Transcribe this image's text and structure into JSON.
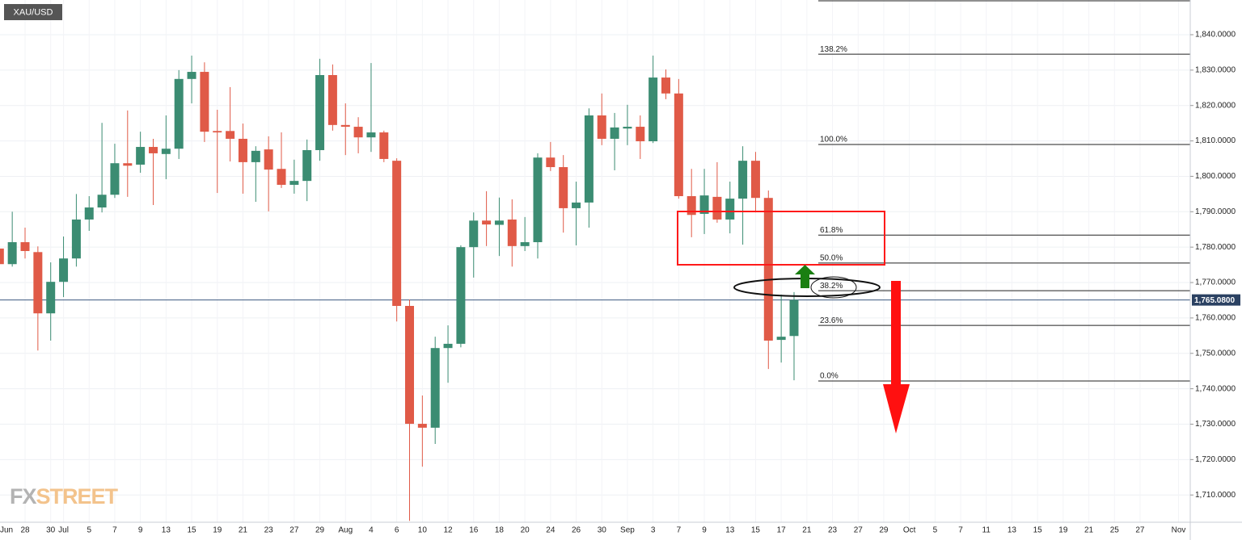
{
  "chart_data": {
    "type": "candlestick",
    "symbol": "XAU/USD",
    "categories": [
      "Jun",
      null,
      "28",
      null,
      "30",
      "Jul",
      null,
      "5",
      null,
      "7",
      null,
      "9",
      null,
      "13",
      null,
      "15",
      null,
      "19",
      null,
      "21",
      null,
      "23",
      null,
      "27",
      null,
      "29",
      null,
      "Aug",
      null,
      "4",
      null,
      "6",
      null,
      "10",
      null,
      "12",
      null,
      "16",
      null,
      "18",
      null,
      "20",
      null,
      "24",
      null,
      "26",
      null,
      "30",
      null,
      "Sep",
      null,
      "3",
      null,
      "7",
      null,
      "9",
      null,
      "13",
      null,
      "15",
      null,
      "17",
      null,
      "21",
      null,
      "23",
      null,
      "27",
      null,
      "29",
      null,
      "Oct",
      null,
      "5",
      null,
      "7",
      null,
      "11",
      null,
      "13",
      null,
      "15",
      null,
      "19",
      null,
      "21",
      null,
      "25",
      null,
      "27",
      null,
      null,
      "Nov"
    ],
    "open": [
      1779.6,
      1775.2,
      1781.4,
      1778.6,
      1761.3,
      1770.2,
      1776.8,
      1787.8,
      1791.2,
      1794.8,
      1803.7,
      1803.3,
      1808.3,
      1806.3,
      1807.8,
      1827.5,
      1829.5,
      1812.8,
      1812.8,
      1810.6,
      1804,
      1807.6,
      1802.1,
      1797.6,
      1798.7,
      1807.4,
      1828.6,
      1814.5,
      1814,
      1811,
      1812.4,
      1804.4,
      1763.4,
      1730.1,
      1729,
      1751.5,
      1752.7,
      1780,
      1787.5,
      1786.3,
      1787.8,
      1780.3,
      1781.4,
      1805.3,
      1802.6,
      1791,
      1792.6,
      1817.2,
      1810.6,
      1813.5,
      1814,
      1809.9,
      1827.9,
      1823.4,
      1794.4,
      1789.4,
      1794.2,
      1787.8,
      1793.7,
      1804.4,
      1793.9,
      1753.8,
      1754.9,
      null,
      null,
      null,
      null,
      null,
      null,
      null,
      null,
      null,
      null,
      null,
      null,
      null,
      null,
      null,
      null,
      null,
      null,
      null,
      null,
      null,
      null,
      null,
      null,
      null,
      null,
      null,
      null,
      null,
      null
    ],
    "high": [
      1782,
      1790,
      1785.5,
      1780.2,
      1775.7,
      1783,
      1795,
      1794.4,
      1815.1,
      1809.2,
      1818.6,
      1812.6,
      1810.6,
      1817.2,
      1830,
      1834.1,
      1832.2,
      1818.8,
      1825.2,
      1814.9,
      1808.5,
      1811.3,
      1812.4,
      1804.7,
      1810.4,
      1833.2,
      1831.6,
      1820.6,
      1816.7,
      1832,
      1812.9,
      1805.1,
      1765.2,
      1738.1,
      1754.7,
      1757.9,
      1780.5,
      1789.8,
      1795.8,
      1794,
      1793.5,
      1788.5,
      1806.5,
      1809.7,
      1806,
      1798.5,
      1819.2,
      1823.4,
      1817.9,
      1820.2,
      1817.2,
      1834.1,
      1830.2,
      1827.5,
      1802.1,
      1802.1,
      1804,
      1798.5,
      1808.5,
      1806.9,
      1796,
      1766.6,
      1767.3,
      null,
      null,
      null,
      null,
      null,
      null,
      null,
      null,
      null,
      null,
      null,
      null,
      null,
      null,
      null,
      null,
      null,
      null,
      null,
      null,
      null,
      null,
      null,
      null,
      null,
      null,
      null,
      null,
      null,
      null
    ],
    "low": [
      1773,
      1774.5,
      1776.8,
      1750.8,
      1753.6,
      1765.9,
      1774.5,
      1784.6,
      1789.8,
      1793.9,
      1794.2,
      1801,
      1791.9,
      1799.2,
      1804.9,
      1820.6,
      1809.7,
      1795.3,
      1804.2,
      1795.1,
      1792.8,
      1790.1,
      1796.7,
      1795.1,
      1793,
      1804.4,
      1812.9,
      1806,
      1806.5,
      1806.9,
      1804,
      1759,
      1702.7,
      1718,
      1724.4,
      1741.7,
      1751.7,
      1771.4,
      1780.3,
      1777.5,
      1774.5,
      1778.9,
      1776.8,
      1801.5,
      1784.1,
      1780.5,
      1785.5,
      1808.8,
      1801.7,
      1808.8,
      1804.9,
      1809.4,
      1821.8,
      1793.7,
      1782.8,
      1783.7,
      1786.9,
      1783.9,
      1780.7,
      1789.8,
      1745.6,
      1747.4,
      1742.4,
      null,
      null,
      null,
      null,
      null,
      null,
      null,
      null,
      null,
      null,
      null,
      null,
      null,
      null,
      null,
      null,
      null,
      null,
      null,
      null,
      null,
      null,
      null,
      null,
      null,
      null,
      null,
      null,
      null,
      null
    ],
    "close": [
      1775.2,
      1781.4,
      1778.9,
      1761.3,
      1770.2,
      1776.8,
      1787.8,
      1791.2,
      1794.8,
      1803.7,
      1803,
      1808.3,
      1806.5,
      1807.8,
      1827.5,
      1829.5,
      1812.6,
      1812.4,
      1810.6,
      1804,
      1807.2,
      1801.9,
      1797.6,
      1798.7,
      1807.4,
      1828.6,
      1814.5,
      1814,
      1811,
      1812.4,
      1804.9,
      1763.4,
      1730.1,
      1729,
      1751.5,
      1752.7,
      1780,
      1787.5,
      1786.4,
      1787.5,
      1780.3,
      1781.4,
      1805.3,
      1802.6,
      1791,
      1792.6,
      1817.2,
      1810.6,
      1813.8,
      1814,
      1809.9,
      1827.9,
      1823.4,
      1794.4,
      1789.1,
      1794.6,
      1787.8,
      1793.7,
      1804.4,
      1793.9,
      1753.6,
      1754.7,
      1765.08,
      null,
      null,
      null,
      null,
      null,
      null,
      null,
      null,
      null,
      null,
      null,
      null,
      null,
      null,
      null,
      null,
      null,
      null,
      null,
      null,
      null,
      null,
      null,
      null,
      null,
      null,
      null,
      null,
      null,
      null
    ],
    "up_color": "#3b8c72",
    "down_color": "#e05a47",
    "ylim": [
      1702.3,
      1849.8
    ],
    "yticks": [
      {
        "value": 1710,
        "label": "1,710.0000"
      },
      {
        "value": 1720,
        "label": "1,720.0000"
      },
      {
        "value": 1730,
        "label": "1,730.0000"
      },
      {
        "value": 1740,
        "label": "1,740.0000"
      },
      {
        "value": 1750,
        "label": "1,750.0000"
      },
      {
        "value": 1760,
        "label": "1,760.0000"
      },
      {
        "value": 1770,
        "label": "1,770.0000"
      },
      {
        "value": 1780,
        "label": "1,780.0000"
      },
      {
        "value": 1790,
        "label": "1,790.0000"
      },
      {
        "value": 1800,
        "label": "1,800.0000"
      },
      {
        "value": 1810,
        "label": "1,810.0000"
      },
      {
        "value": 1820,
        "label": "1,820.0000"
      },
      {
        "value": 1830,
        "label": "1,830.0000"
      },
      {
        "value": 1840,
        "label": "1,840.0000"
      }
    ],
    "grid": true,
    "last_price": {
      "value": 1765.08,
      "label": "1,765.0800"
    },
    "fib_levels": [
      {
        "label": "138.2%",
        "price": 1834.5
      },
      {
        "label": "100.0%",
        "price": 1809
      },
      {
        "label": "61.8%",
        "price": 1783.4
      },
      {
        "label": "50.0%",
        "price": 1775.5
      },
      {
        "label": "38.2%",
        "price": 1767.7
      },
      {
        "label": "23.6%",
        "price": 1757.9
      },
      {
        "label": "0.0%",
        "price": 1742.2
      }
    ],
    "watermark": [
      "FX",
      "STREET"
    ]
  }
}
